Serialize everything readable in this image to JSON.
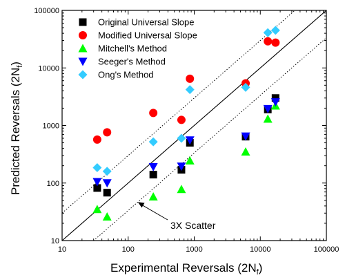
{
  "chart_data": {
    "type": "scatter",
    "title": "",
    "xlabel": "Experimental Reversals (2N",
    "xlabel_sub": "f",
    "xlabel_end": ")",
    "ylabel": "Predicted Reversals (2N",
    "ylabel_sub": "f",
    "ylabel_end": ")",
    "x_scale": "log",
    "y_scale": "log",
    "xlim": [
      10,
      100000
    ],
    "ylim": [
      10,
      100000
    ],
    "x_ticks": [
      10,
      100,
      1000,
      10000,
      100000
    ],
    "x_tick_labels": [
      "10",
      "100",
      "1000",
      "10000",
      "100000"
    ],
    "y_ticks": [
      10,
      100,
      1000,
      10000,
      100000
    ],
    "y_tick_labels": [
      "10",
      "100",
      "1000",
      "10000",
      "100000"
    ],
    "grid": false,
    "legend_position": "top-left",
    "reference_lines": [
      {
        "kind": "solid",
        "factor": 1
      },
      {
        "kind": "dotted",
        "factor": 3
      },
      {
        "kind": "dotted",
        "factor": 0.3333
      }
    ],
    "annotation": {
      "text": "3X Scatter",
      "arrow_target_x": 140,
      "arrow_target_y": 46.7
    },
    "series": [
      {
        "name": "Original Universal Slope",
        "marker": "square",
        "color": "#000000",
        "points": [
          [
            34,
            82
          ],
          [
            48,
            68
          ],
          [
            240,
            140
          ],
          [
            640,
            170
          ],
          [
            860,
            500
          ],
          [
            6000,
            640
          ],
          [
            13000,
            1900
          ],
          [
            17000,
            3000
          ]
        ]
      },
      {
        "name": "Modified Universal Slope",
        "marker": "circle",
        "color": "#ff0000",
        "points": [
          [
            34,
            570
          ],
          [
            48,
            760
          ],
          [
            240,
            1650
          ],
          [
            640,
            1250
          ],
          [
            860,
            6500
          ],
          [
            6000,
            5400
          ],
          [
            13000,
            29000
          ],
          [
            17000,
            27500
          ]
        ]
      },
      {
        "name": "Mitchell's Method",
        "marker": "triangle-up",
        "color": "#00ff00",
        "points": [
          [
            34,
            35
          ],
          [
            48,
            26
          ],
          [
            240,
            58
          ],
          [
            640,
            78
          ],
          [
            860,
            245
          ],
          [
            6000,
            350
          ],
          [
            13000,
            1300
          ],
          [
            17000,
            2200
          ]
        ]
      },
      {
        "name": "Seeger's Method",
        "marker": "triangle-down",
        "color": "#0000ff",
        "points": [
          [
            34,
            105
          ],
          [
            48,
            100
          ],
          [
            240,
            190
          ],
          [
            640,
            195
          ],
          [
            860,
            555
          ],
          [
            6000,
            650
          ],
          [
            13000,
            1950
          ],
          [
            17000,
            2550
          ]
        ]
      },
      {
        "name": "Ong's Method",
        "marker": "diamond",
        "color": "#33ccff",
        "points": [
          [
            34,
            185
          ],
          [
            48,
            160
          ],
          [
            240,
            520
          ],
          [
            640,
            600
          ],
          [
            860,
            4200
          ],
          [
            6000,
            4600
          ],
          [
            13000,
            41000
          ],
          [
            17000,
            45000
          ]
        ]
      }
    ]
  }
}
